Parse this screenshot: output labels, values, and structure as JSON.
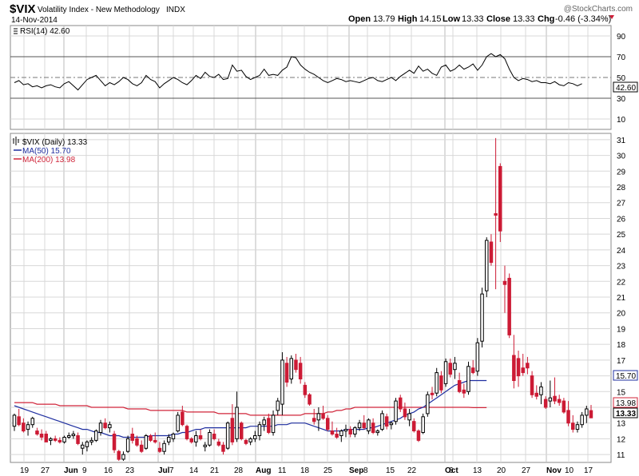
{
  "header": {
    "symbol": "$VIX",
    "name": "Volatility Index - New Methodology",
    "exchange": "INDX",
    "date": "14-Nov-2014",
    "credit": "@StockCharts.com",
    "open_label": "Open",
    "open_value": "13.79",
    "high_label": "High",
    "high_value": "14.15",
    "low_label": "Low",
    "low_value": "13.33",
    "close_label": "Close",
    "close_value": "13.33",
    "chg_label": "Chg",
    "chg_value": "-0.46 (-3.34%)"
  },
  "rsi_panel": {
    "legend": "RSI(14) 42.60",
    "last_value_tag": "42.60"
  },
  "price_panel": {
    "legend_price": "$VIX (Daily) 13.33",
    "legend_ma50": "MA(50) 15.70",
    "legend_ma200": "MA(200) 13.98",
    "tag_ma50": "15.70",
    "tag_ma200": "13.98",
    "tag_close": "13.33"
  },
  "colors": {
    "up_candle": "#000000",
    "down_candle": "#cc1b35",
    "ma50": "#1f2fa0",
    "ma200": "#d0253a",
    "rsi_line": "#000000",
    "grid": "#d8d8d8"
  },
  "chart_data": {
    "type": "candlestick",
    "title": "$VIX Volatility Index - New Methodology",
    "x_tick_labels": [
      "19",
      "27",
      "Jun",
      "9",
      "16",
      "23",
      "Jul",
      "7",
      "14",
      "21",
      "28",
      "Aug",
      "11",
      "18",
      "25",
      "Sep",
      "8",
      "15",
      "22",
      "Oct",
      "6",
      "13",
      "20",
      "27",
      "Nov",
      "10",
      "17"
    ],
    "y_ticks_price": [
      11,
      12,
      13,
      14,
      15,
      16,
      17,
      18,
      19,
      20,
      21,
      22,
      23,
      24,
      25,
      26,
      27,
      28,
      29,
      30,
      31
    ],
    "ylim_price": [
      10.5,
      31.4
    ],
    "y_ticks_rsi": [
      10,
      30,
      50,
      70,
      90
    ],
    "ylim_rsi": [
      0,
      100
    ],
    "grid": true,
    "candles": [
      {
        "o": 12.8,
        "h": 13.6,
        "l": 12.5,
        "c": 13.5
      },
      {
        "o": 13.4,
        "h": 13.9,
        "l": 12.8,
        "c": 12.9
      },
      {
        "o": 13.0,
        "h": 13.3,
        "l": 12.4,
        "c": 12.5
      },
      {
        "o": 12.6,
        "h": 13.1,
        "l": 12.2,
        "c": 12.9
      },
      {
        "o": 12.9,
        "h": 13.4,
        "l": 12.7,
        "c": 13.3
      },
      {
        "o": 12.5,
        "h": 12.7,
        "l": 12.2,
        "c": 12.3
      },
      {
        "o": 12.3,
        "h": 12.6,
        "l": 11.9,
        "c": 12.1
      },
      {
        "o": 12.3,
        "h": 12.5,
        "l": 11.8,
        "c": 11.8
      },
      {
        "o": 11.9,
        "h": 12.1,
        "l": 11.6,
        "c": 12.0
      },
      {
        "o": 12.0,
        "h": 12.2,
        "l": 11.8,
        "c": 11.9
      },
      {
        "o": 11.9,
        "h": 12.1,
        "l": 11.7,
        "c": 11.8
      },
      {
        "o": 11.8,
        "h": 12.2,
        "l": 11.7,
        "c": 12.1
      },
      {
        "o": 12.1,
        "h": 12.4,
        "l": 12.0,
        "c": 12.2
      },
      {
        "o": 12.2,
        "h": 12.5,
        "l": 12.0,
        "c": 12.3
      },
      {
        "o": 12.2,
        "h": 12.4,
        "l": 11.6,
        "c": 11.7
      },
      {
        "o": 11.4,
        "h": 11.8,
        "l": 11.0,
        "c": 11.6
      },
      {
        "o": 11.5,
        "h": 11.9,
        "l": 11.2,
        "c": 11.8
      },
      {
        "o": 11.8,
        "h": 12.1,
        "l": 11.6,
        "c": 11.9
      },
      {
        "o": 11.9,
        "h": 12.6,
        "l": 11.8,
        "c": 12.5
      },
      {
        "o": 12.4,
        "h": 13.2,
        "l": 12.2,
        "c": 13.0
      },
      {
        "o": 13.0,
        "h": 13.3,
        "l": 12.6,
        "c": 12.7
      },
      {
        "o": 12.7,
        "h": 13.1,
        "l": 12.4,
        "c": 12.9
      },
      {
        "o": 12.3,
        "h": 12.5,
        "l": 11.1,
        "c": 11.3
      },
      {
        "o": 11.2,
        "h": 11.3,
        "l": 10.6,
        "c": 10.7
      },
      {
        "o": 10.7,
        "h": 11.2,
        "l": 10.6,
        "c": 11.0
      },
      {
        "o": 11.2,
        "h": 12.2,
        "l": 11.1,
        "c": 12.0
      },
      {
        "o": 12.3,
        "h": 12.7,
        "l": 11.7,
        "c": 11.9
      },
      {
        "o": 12.0,
        "h": 12.2,
        "l": 11.5,
        "c": 11.6
      },
      {
        "o": 11.6,
        "h": 11.9,
        "l": 11.1,
        "c": 11.2
      },
      {
        "o": 11.4,
        "h": 12.3,
        "l": 11.3,
        "c": 12.2
      },
      {
        "o": 12.2,
        "h": 12.3,
        "l": 11.8,
        "c": 11.9
      },
      {
        "o": 11.9,
        "h": 12.4,
        "l": 11.7,
        "c": 11.8
      },
      {
        "o": 11.4,
        "h": 11.8,
        "l": 11.1,
        "c": 11.2
      },
      {
        "o": 11.2,
        "h": 11.9,
        "l": 11.0,
        "c": 11.7
      },
      {
        "o": 11.8,
        "h": 12.3,
        "l": 11.6,
        "c": 12.1
      },
      {
        "o": 12.0,
        "h": 12.4,
        "l": 11.8,
        "c": 12.3
      },
      {
        "o": 12.5,
        "h": 13.7,
        "l": 12.4,
        "c": 13.5
      },
      {
        "o": 13.7,
        "h": 14.1,
        "l": 12.8,
        "c": 12.9
      },
      {
        "o": 12.8,
        "h": 12.9,
        "l": 11.9,
        "c": 12.0
      },
      {
        "o": 12.0,
        "h": 12.1,
        "l": 11.7,
        "c": 11.8
      },
      {
        "o": 11.8,
        "h": 12.5,
        "l": 11.5,
        "c": 12.2
      },
      {
        "o": 12.2,
        "h": 12.6,
        "l": 11.9,
        "c": 12.0
      },
      {
        "o": 11.5,
        "h": 11.8,
        "l": 11.2,
        "c": 11.6
      },
      {
        "o": 11.6,
        "h": 12.6,
        "l": 11.5,
        "c": 12.4
      },
      {
        "o": 12.3,
        "h": 12.6,
        "l": 11.9,
        "c": 12.0
      },
      {
        "o": 11.8,
        "h": 12.0,
        "l": 11.5,
        "c": 11.6
      },
      {
        "o": 11.6,
        "h": 11.8,
        "l": 11.0,
        "c": 11.2
      },
      {
        "o": 11.4,
        "h": 13.1,
        "l": 11.3,
        "c": 13.0
      },
      {
        "o": 13.3,
        "h": 14.2,
        "l": 11.6,
        "c": 11.8
      },
      {
        "o": 12.0,
        "h": 15.0,
        "l": 11.8,
        "c": 14.0
      },
      {
        "o": 13.0,
        "h": 13.1,
        "l": 11.9,
        "c": 12.0
      },
      {
        "o": 11.9,
        "h": 12.0,
        "l": 11.6,
        "c": 11.7
      },
      {
        "o": 11.8,
        "h": 12.1,
        "l": 11.6,
        "c": 12.0
      },
      {
        "o": 12.0,
        "h": 12.5,
        "l": 11.8,
        "c": 12.2
      },
      {
        "o": 12.2,
        "h": 13.1,
        "l": 11.9,
        "c": 12.9
      },
      {
        "o": 12.9,
        "h": 13.4,
        "l": 12.5,
        "c": 13.2
      },
      {
        "o": 13.3,
        "h": 13.6,
        "l": 12.3,
        "c": 12.4
      },
      {
        "o": 12.4,
        "h": 13.8,
        "l": 12.2,
        "c": 13.5
      },
      {
        "o": 13.8,
        "h": 14.6,
        "l": 13.5,
        "c": 14.4
      },
      {
        "o": 14.2,
        "h": 17.5,
        "l": 13.5,
        "c": 17.0
      },
      {
        "o": 16.8,
        "h": 17.2,
        "l": 15.3,
        "c": 15.6
      },
      {
        "o": 15.8,
        "h": 17.3,
        "l": 15.5,
        "c": 17.1
      },
      {
        "o": 17.0,
        "h": 17.4,
        "l": 16.2,
        "c": 16.4
      },
      {
        "o": 16.8,
        "h": 17.2,
        "l": 15.5,
        "c": 15.8
      },
      {
        "o": 15.4,
        "h": 15.6,
        "l": 14.6,
        "c": 14.8
      },
      {
        "o": 14.8,
        "h": 14.9,
        "l": 14.1,
        "c": 14.2
      },
      {
        "o": 13.3,
        "h": 13.9,
        "l": 12.9,
        "c": 13.1
      },
      {
        "o": 13.2,
        "h": 14.0,
        "l": 12.5,
        "c": 13.6
      },
      {
        "o": 13.6,
        "h": 14.1,
        "l": 13.2,
        "c": 13.3
      },
      {
        "o": 13.3,
        "h": 13.5,
        "l": 12.5,
        "c": 12.6
      },
      {
        "o": 12.5,
        "h": 13.1,
        "l": 12.2,
        "c": 12.3
      },
      {
        "o": 12.3,
        "h": 12.7,
        "l": 12.0,
        "c": 12.1
      },
      {
        "o": 12.2,
        "h": 12.6,
        "l": 11.8,
        "c": 12.5
      },
      {
        "o": 12.5,
        "h": 12.9,
        "l": 12.1,
        "c": 12.6
      },
      {
        "o": 12.6,
        "h": 12.8,
        "l": 12.1,
        "c": 12.3
      },
      {
        "o": 12.3,
        "h": 12.8,
        "l": 12.1,
        "c": 12.7
      },
      {
        "o": 12.7,
        "h": 13.2,
        "l": 12.5,
        "c": 13.0
      },
      {
        "o": 13.0,
        "h": 13.5,
        "l": 12.6,
        "c": 12.7
      },
      {
        "o": 12.5,
        "h": 13.3,
        "l": 12.3,
        "c": 13.2
      },
      {
        "o": 13.0,
        "h": 13.3,
        "l": 12.3,
        "c": 12.4
      },
      {
        "o": 12.4,
        "h": 12.6,
        "l": 12.2,
        "c": 12.5
      },
      {
        "o": 12.6,
        "h": 13.8,
        "l": 12.5,
        "c": 13.6
      },
      {
        "o": 13.4,
        "h": 13.6,
        "l": 12.6,
        "c": 12.8
      },
      {
        "o": 12.9,
        "h": 13.1,
        "l": 12.6,
        "c": 13.0
      },
      {
        "o": 13.1,
        "h": 14.6,
        "l": 12.9,
        "c": 14.4
      },
      {
        "o": 14.6,
        "h": 14.8,
        "l": 13.7,
        "c": 13.9
      },
      {
        "o": 13.9,
        "h": 14.3,
        "l": 13.2,
        "c": 13.4
      },
      {
        "o": 13.2,
        "h": 13.9,
        "l": 12.8,
        "c": 13.6
      },
      {
        "o": 13.1,
        "h": 13.3,
        "l": 12.4,
        "c": 12.5
      },
      {
        "o": 12.5,
        "h": 12.6,
        "l": 11.8,
        "c": 11.9
      },
      {
        "o": 12.4,
        "h": 13.6,
        "l": 12.3,
        "c": 13.4
      },
      {
        "o": 13.6,
        "h": 15.0,
        "l": 13.4,
        "c": 14.8
      },
      {
        "o": 14.9,
        "h": 15.3,
        "l": 14.5,
        "c": 14.8
      },
      {
        "o": 14.9,
        "h": 16.5,
        "l": 14.7,
        "c": 16.2
      },
      {
        "o": 16.0,
        "h": 16.3,
        "l": 14.9,
        "c": 15.1
      },
      {
        "o": 15.5,
        "h": 17.1,
        "l": 15.3,
        "c": 16.9
      },
      {
        "o": 16.8,
        "h": 17.1,
        "l": 15.9,
        "c": 16.1
      },
      {
        "o": 16.4,
        "h": 17.2,
        "l": 15.8,
        "c": 16.8
      },
      {
        "o": 15.7,
        "h": 16.2,
        "l": 14.9,
        "c": 15.0
      },
      {
        "o": 15.1,
        "h": 15.5,
        "l": 14.6,
        "c": 14.9
      },
      {
        "o": 15.0,
        "h": 16.9,
        "l": 14.8,
        "c": 16.6
      },
      {
        "o": 16.5,
        "h": 17.0,
        "l": 16.1,
        "c": 16.2
      },
      {
        "o": 16.3,
        "h": 18.4,
        "l": 16.0,
        "c": 18.1
      },
      {
        "o": 18.2,
        "h": 21.6,
        "l": 17.8,
        "c": 21.2
      },
      {
        "o": 21.4,
        "h": 24.8,
        "l": 21.0,
        "c": 24.6
      },
      {
        "o": 24.5,
        "h": 25.0,
        "l": 23.0,
        "c": 23.2
      },
      {
        "o": 26.3,
        "h": 31.1,
        "l": 21.5,
        "c": 26.2
      },
      {
        "o": 29.3,
        "h": 29.5,
        "l": 24.5,
        "c": 25.2
      },
      {
        "o": 22.0,
        "h": 23.0,
        "l": 20.0,
        "c": 21.8
      },
      {
        "o": 22.2,
        "h": 22.5,
        "l": 18.4,
        "c": 18.6
      },
      {
        "o": 17.3,
        "h": 18.6,
        "l": 15.2,
        "c": 15.7
      },
      {
        "o": 17.1,
        "h": 17.6,
        "l": 15.3,
        "c": 16.0
      },
      {
        "o": 16.5,
        "h": 17.4,
        "l": 16.0,
        "c": 16.2
      },
      {
        "o": 16.8,
        "h": 17.2,
        "l": 16.1,
        "c": 16.5
      },
      {
        "o": 16.0,
        "h": 16.3,
        "l": 14.6,
        "c": 14.8
      },
      {
        "o": 14.9,
        "h": 15.4,
        "l": 14.5,
        "c": 14.7
      },
      {
        "o": 14.8,
        "h": 15.6,
        "l": 14.2,
        "c": 15.3
      },
      {
        "o": 14.5,
        "h": 14.7,
        "l": 13.9,
        "c": 14.0
      },
      {
        "o": 14.4,
        "h": 15.7,
        "l": 14.0,
        "c": 14.6
      },
      {
        "o": 14.7,
        "h": 15.9,
        "l": 14.2,
        "c": 14.4
      },
      {
        "o": 14.5,
        "h": 14.8,
        "l": 14.1,
        "c": 14.3
      },
      {
        "o": 14.4,
        "h": 14.6,
        "l": 13.6,
        "c": 13.7
      },
      {
        "o": 13.8,
        "h": 14.4,
        "l": 12.8,
        "c": 13.0
      },
      {
        "o": 13.0,
        "h": 13.5,
        "l": 12.4,
        "c": 12.6
      },
      {
        "o": 12.6,
        "h": 13.1,
        "l": 12.4,
        "c": 12.9
      },
      {
        "o": 12.9,
        "h": 13.7,
        "l": 12.7,
        "c": 13.5
      },
      {
        "o": 13.5,
        "h": 14.1,
        "l": 13.0,
        "c": 13.9
      },
      {
        "o": 13.79,
        "h": 14.15,
        "l": 13.33,
        "c": 13.33
      }
    ],
    "ma50": [
      14.1,
      14.0,
      13.9,
      13.8,
      13.7,
      13.6,
      13.5,
      13.4,
      13.3,
      13.2,
      13.1,
      13.0,
      12.9,
      12.8,
      12.7,
      12.6,
      12.6,
      12.5,
      12.4,
      12.4,
      12.3,
      12.2,
      12.2,
      12.2,
      12.1,
      12.1,
      12.1,
      12.1,
      12.1,
      12.1,
      12.2,
      12.2,
      12.2,
      12.2,
      12.2,
      12.3,
      12.3,
      12.4,
      12.4,
      12.5,
      12.6,
      12.6,
      12.7,
      12.7,
      12.7,
      12.7,
      12.7,
      12.7,
      12.7,
      12.7,
      12.7,
      12.7,
      12.8,
      12.8,
      12.8,
      12.8,
      12.8,
      12.8,
      12.9,
      12.9,
      12.9,
      13.0,
      13.0,
      13.0,
      13.0,
      12.9,
      12.8,
      12.7,
      12.6,
      12.5,
      12.5,
      12.5,
      12.5,
      12.6,
      12.6,
      12.6,
      12.6,
      12.6,
      12.7,
      12.7,
      12.8,
      12.9,
      13.0,
      13.1,
      13.2,
      13.3,
      13.5,
      13.6,
      13.7,
      13.9,
      14.0,
      14.2,
      14.4,
      14.6,
      14.8,
      15.0,
      15.2,
      15.4,
      15.5,
      15.6,
      15.7,
      15.7,
      15.7,
      15.7,
      15.7
    ],
    "ma200": [
      14.3,
      14.3,
      14.3,
      14.3,
      14.3,
      14.2,
      14.2,
      14.2,
      14.2,
      14.2,
      14.1,
      14.1,
      14.1,
      14.1,
      14.1,
      14.1,
      14.1,
      14.0,
      14.0,
      14.0,
      14.0,
      14.0,
      14.0,
      14.0,
      14.0,
      13.9,
      13.9,
      13.9,
      13.9,
      13.9,
      13.8,
      13.8,
      13.8,
      13.8,
      13.8,
      13.8,
      13.8,
      13.8,
      13.7,
      13.7,
      13.7,
      13.7,
      13.7,
      13.7,
      13.7,
      13.6,
      13.6,
      13.6,
      13.6,
      13.6,
      13.6,
      13.6,
      13.5,
      13.5,
      13.5,
      13.5,
      13.5,
      13.5,
      13.5,
      13.5,
      13.5,
      13.5,
      13.5,
      13.5,
      13.6,
      13.6,
      13.6,
      13.6,
      13.6,
      13.7,
      13.7,
      13.8,
      13.8,
      13.9,
      13.9,
      14.0,
      14.0,
      14.0,
      14.0,
      14.0,
      14.0,
      14.0,
      14.0,
      14.0,
      14.0,
      14.0,
      14.0,
      14.0,
      14.0,
      14.0,
      14.0,
      14.0,
      14.0,
      14.0,
      14.0,
      14.0,
      14.0,
      14.0,
      14.0,
      14.0,
      14.0,
      13.98,
      13.98,
      13.98,
      13.98
    ],
    "rsi": [
      45,
      47,
      43,
      44,
      41,
      42,
      40,
      42,
      43,
      41,
      40,
      44,
      46,
      42,
      38,
      43,
      48,
      50,
      52,
      47,
      42,
      45,
      43,
      46,
      50,
      48,
      44,
      42,
      45,
      52,
      48,
      46,
      40,
      44,
      47,
      50,
      48,
      45,
      43,
      47,
      52,
      49,
      55,
      51,
      50,
      53,
      48,
      49,
      62,
      56,
      57,
      51,
      48,
      50,
      52,
      58,
      52,
      53,
      52,
      57,
      60,
      70,
      69,
      62,
      58,
      55,
      53,
      50,
      47,
      45,
      47,
      49,
      48,
      46,
      47,
      46,
      45,
      47,
      49,
      50,
      47,
      46,
      48,
      50,
      47,
      51,
      54,
      57,
      54,
      61,
      56,
      58,
      54,
      52,
      60,
      62,
      56,
      58,
      62,
      58,
      60,
      63,
      57,
      62,
      70,
      73,
      70,
      72,
      68,
      58,
      50,
      47,
      49,
      48,
      46,
      47,
      45,
      45,
      44,
      46,
      43,
      42,
      45,
      44,
      42,
      44
    ],
    "rsi_last": 42.6
  }
}
